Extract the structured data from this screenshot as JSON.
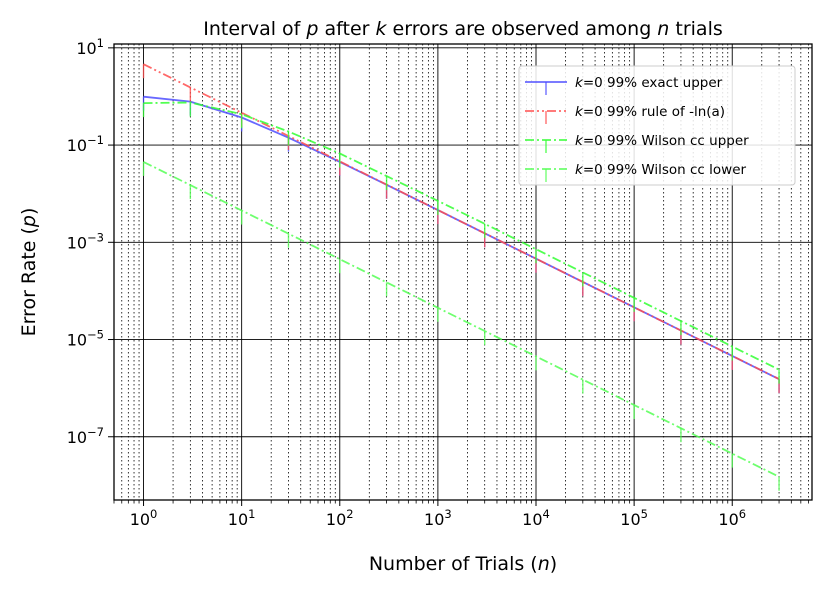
{
  "chart_data": {
    "type": "line",
    "title": "Interval of p after k errors are observed among n trials",
    "title_parts": [
      {
        "text": "Interval of ",
        "italic": false
      },
      {
        "text": "p",
        "italic": true
      },
      {
        "text": " after ",
        "italic": false
      },
      {
        "text": "k",
        "italic": true
      },
      {
        "text": " errors are observed among ",
        "italic": false
      },
      {
        "text": "n",
        "italic": true
      },
      {
        "text": " trials",
        "italic": false
      }
    ],
    "xlabel": "Number of Trials (n)",
    "xlabel_parts": [
      {
        "text": "Number of Trials (",
        "italic": false
      },
      {
        "text": "n",
        "italic": true
      },
      {
        "text": ")",
        "italic": false
      }
    ],
    "ylabel": "Error Rate (p)",
    "ylabel_parts": [
      {
        "text": "Error Rate (",
        "italic": false
      },
      {
        "text": "p",
        "italic": true
      },
      {
        "text": ")",
        "italic": false
      }
    ],
    "xscale": "log",
    "yscale": "log",
    "xlim": [
      0.5,
      6500000
    ],
    "ylim": [
      5e-09,
      12
    ],
    "x_ticks": [
      {
        "value": 1,
        "base": "10",
        "exp": "0"
      },
      {
        "value": 10,
        "base": "10",
        "exp": "1"
      },
      {
        "value": 100,
        "base": "10",
        "exp": "2"
      },
      {
        "value": 1000,
        "base": "10",
        "exp": "3"
      },
      {
        "value": 10000,
        "base": "10",
        "exp": "4"
      },
      {
        "value": 100000,
        "base": "10",
        "exp": "5"
      },
      {
        "value": 1000000,
        "base": "10",
        "exp": "6"
      }
    ],
    "y_ticks": [
      {
        "value": 10,
        "base": "10",
        "exp": "1"
      },
      {
        "value": 0.1,
        "base": "10",
        "exp": "−1"
      },
      {
        "value": 0.001,
        "base": "10",
        "exp": "−3"
      },
      {
        "value": 1e-05,
        "base": "10",
        "exp": "−5"
      },
      {
        "value": 1e-07,
        "base": "10",
        "exp": "−7"
      }
    ],
    "grid": {
      "major": true,
      "minor_x": true
    },
    "legend_position": "top-right",
    "x": [
      1,
      3,
      10,
      30,
      100,
      300,
      1000,
      3000,
      10000,
      30000,
      100000,
      300000,
      1000000,
      3000000
    ],
    "series": [
      {
        "name": "k=0 99% exact upper",
        "legend_parts": [
          {
            "text": "k",
            "italic": true
          },
          {
            "text": "=0 99% exact upper",
            "italic": false
          }
        ],
        "color": "#4d4dff",
        "dash": "solid",
        "values": [
          0.99,
          0.785,
          0.369,
          0.142,
          0.045,
          0.0152,
          0.0046,
          0.00153,
          0.00046,
          0.000153,
          4.6e-05,
          1.53e-05,
          4.6e-06,
          1.53e-06
        ]
      },
      {
        "name": "k=0 99% rule of -ln(a)",
        "legend_parts": [
          {
            "text": "k",
            "italic": true
          },
          {
            "text": "=0 99% rule of -ln(a)",
            "italic": false
          }
        ],
        "color": "#ff4d4d",
        "dash": "dashdotdot",
        "values": [
          4.605,
          1.535,
          0.4605,
          0.1535,
          0.04605,
          0.01535,
          0.004605,
          0.001535,
          0.0004605,
          0.0001535,
          4.605e-05,
          1.535e-05,
          4.605e-06,
          1.535e-06
        ]
      },
      {
        "name": "k=0 99% Wilson cc upper",
        "legend_parts": [
          {
            "text": "k",
            "italic": true
          },
          {
            "text": "=0 99% Wilson cc upper",
            "italic": false
          }
        ],
        "color": "#33ff33",
        "dash": "dashdot",
        "values": [
          0.73,
          0.75,
          0.43,
          0.19,
          0.067,
          0.023,
          0.0071,
          0.0024,
          0.00072,
          0.00024,
          7.2e-05,
          2.4e-05,
          7.2e-06,
          2.4e-06
        ]
      },
      {
        "name": "k=0 99% Wilson cc lower",
        "legend_parts": [
          {
            "text": "k",
            "italic": true
          },
          {
            "text": "=0 99% Wilson cc lower",
            "italic": false
          }
        ],
        "color": "#55ff55",
        "dash": "dashdot",
        "values": [
          0.045,
          0.015,
          0.0045,
          0.0015,
          0.00045,
          0.00015,
          4.5e-05,
          1.5e-05,
          4.5e-06,
          1.5e-06,
          4.5e-07,
          1.5e-07,
          4.5e-08,
          1.5e-08
        ]
      }
    ]
  }
}
